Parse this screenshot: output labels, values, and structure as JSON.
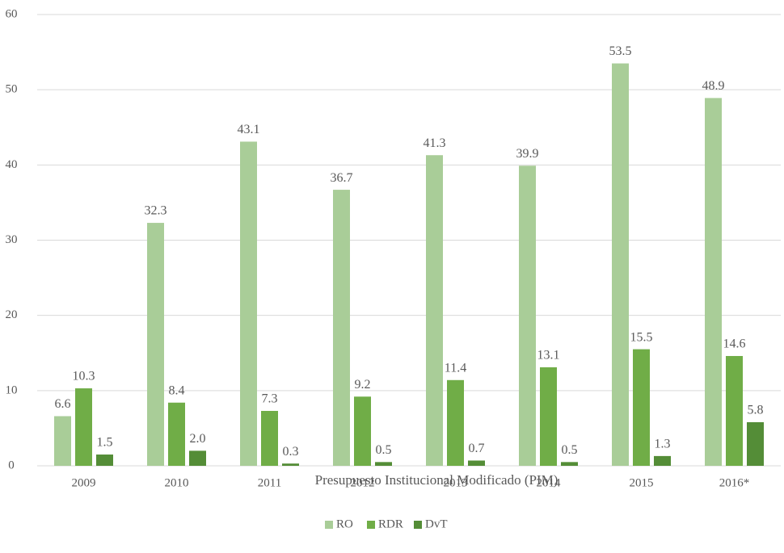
{
  "chart_data": {
    "type": "bar",
    "x_label": "Presupuesto Institucional Modificado (PIM)",
    "categories": [
      "2009",
      "2010",
      "2011",
      "2012",
      "2013",
      "2014",
      "2015",
      "2016*"
    ],
    "series": [
      {
        "name": "RO",
        "color": "#a9cd98",
        "values": [
          6.6,
          32.3,
          43.1,
          36.7,
          41.3,
          39.9,
          53.5,
          48.9
        ],
        "value_labels": [
          "6.6",
          "32.3",
          "43.1",
          "36.7",
          "41.3",
          "39.9",
          "53.5",
          "48.9"
        ]
      },
      {
        "name": "RDR",
        "color": "#70ad47",
        "values": [
          10.3,
          8.4,
          7.3,
          9.2,
          11.4,
          13.1,
          15.5,
          14.6
        ],
        "value_labels": [
          "10.3",
          "8.4",
          "7.3",
          "9.2",
          "11.4",
          "13.1",
          "15.5",
          "14.6"
        ]
      },
      {
        "name": "DvT",
        "color": "#548d37",
        "values": [
          1.5,
          2.0,
          0.3,
          0.5,
          0.7,
          0.5,
          1.3,
          5.8
        ],
        "value_labels": [
          "1.5",
          "2.0",
          "0.3",
          "0.5",
          "0.7",
          "0.5",
          "1.3",
          "5.8"
        ]
      }
    ],
    "ylim": [
      0,
      60
    ],
    "yticks": [
      0,
      10,
      20,
      30,
      40,
      50,
      60
    ],
    "grid": true,
    "legend": "bottom"
  }
}
